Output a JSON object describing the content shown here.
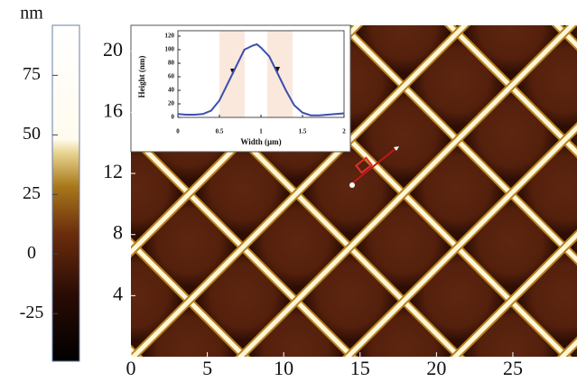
{
  "chart_data": [
    {
      "type": "image",
      "xlim": [
        0,
        29.2
      ],
      "ylim": [
        0,
        21.7
      ],
      "xticks": [
        0,
        5,
        10,
        15,
        20,
        25
      ],
      "yticks": [
        4,
        8,
        12,
        16,
        20
      ],
      "colorbar": {
        "label": "nm",
        "lim": [
          -45,
          96
        ],
        "ticks": [
          75,
          50,
          25,
          0,
          -25
        ]
      }
    },
    {
      "type": "line",
      "xlabel": "Width (μm)",
      "ylabel": "Height (nm)",
      "x": [
        0,
        0.1,
        0.2,
        0.3,
        0.4,
        0.5,
        0.6,
        0.7,
        0.8,
        0.9,
        0.95,
        1.0,
        1.1,
        1.2,
        1.3,
        1.4,
        1.5,
        1.6,
        1.7,
        1.8,
        1.9,
        2.0
      ],
      "values": [
        5,
        4,
        4,
        5,
        10,
        25,
        50,
        75,
        100,
        106,
        108,
        103,
        90,
        65,
        40,
        18,
        7,
        3,
        3,
        4,
        5,
        6
      ],
      "color": "#3a4fb0",
      "xlim": [
        0,
        2
      ],
      "ylim": [
        0,
        120
      ],
      "xticks": [
        0,
        0.5,
        1,
        1.5,
        2
      ],
      "yticks": [
        0,
        20,
        40,
        60,
        80,
        100,
        120
      ]
    }
  ]
}
